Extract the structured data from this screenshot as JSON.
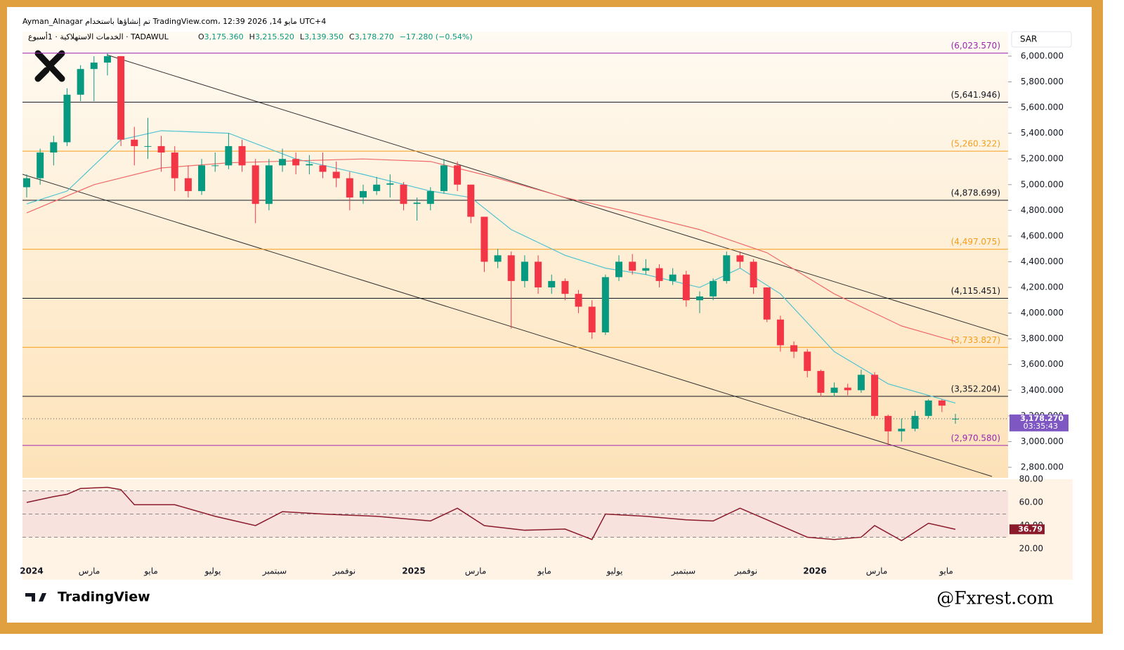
{
  "chart_data": {
    "type": "candlestick",
    "header": "Ayman_Alnagar تم إنشاؤها باستخدام TradingView.com، 12:39 2026 ,14 مايو UTC+4",
    "symbol": "الخدمات الاستهلاكية · 1أسبوع · TADAWUL",
    "ohlc": {
      "labels": [
        "O",
        "H",
        "L",
        "C"
      ],
      "values": [
        3175.36,
        3215.52,
        3139.35,
        3178.27
      ],
      "value_labels": [
        "3,175.360",
        "3,215.520",
        "3,139.350",
        "3,178.270"
      ]
    },
    "change": "−17.280 (−0.54%)",
    "currency": "SAR",
    "last_price": {
      "value": 3178.27,
      "label": "3,178.270"
    },
    "countdown": "03:35:43",
    "up_color": "#089981",
    "down_color": "#f23645",
    "ylim": [
      2718,
      6191
    ],
    "yticks": [
      {
        "value": 6000,
        "label": "6,000.000"
      },
      {
        "value": 5800,
        "label": "5,800.000"
      },
      {
        "value": 5600,
        "label": "5,600.000"
      },
      {
        "value": 5400,
        "label": "5,400.000"
      },
      {
        "value": 5200,
        "label": "5,200.000"
      },
      {
        "value": 5000,
        "label": "5,000.000"
      },
      {
        "value": 4800,
        "label": "4,800.000"
      },
      {
        "value": 4600,
        "label": "4,600.000"
      },
      {
        "value": 4400,
        "label": "4,400.000"
      },
      {
        "value": 4200,
        "label": "4,200.000"
      },
      {
        "value": 4000,
        "label": "4,000.000"
      },
      {
        "value": 3800,
        "label": "3,800.000"
      },
      {
        "value": 3600,
        "label": "3,600.000"
      },
      {
        "value": 3400,
        "label": "3,400.000"
      },
      {
        "value": 3200,
        "label": "3,200.000"
      },
      {
        "value": 3000,
        "label": "3,000.000"
      },
      {
        "value": 2800,
        "label": "2,800.000"
      }
    ],
    "levels": [
      {
        "value": 6023.57,
        "label": "(6,023.570)",
        "color": "#9c27b0"
      },
      {
        "value": 5641.946,
        "label": "(5,641.946)",
        "color": "#131722"
      },
      {
        "value": 5260.322,
        "label": "(5,260.322)",
        "color": "#f59d1b"
      },
      {
        "value": 4878.699,
        "label": "(4,878.699)",
        "color": "#131722"
      },
      {
        "value": 4497.075,
        "label": "(4,497.075)",
        "color": "#f59d1b"
      },
      {
        "value": 4115.451,
        "label": "(4,115.451)",
        "color": "#131722"
      },
      {
        "value": 3733.827,
        "label": "(3,733.827)",
        "color": "#f59d1b"
      },
      {
        "value": 3352.204,
        "label": "(3,352.204)",
        "color": "#131722"
      },
      {
        "value": 2970.58,
        "label": "(2,970.580)",
        "color": "#9c27b0"
      }
    ],
    "candles": [
      [
        4980,
        5080,
        4900,
        5050
      ],
      [
        5050,
        5280,
        5000,
        5250
      ],
      [
        5250,
        5380,
        5150,
        5330
      ],
      [
        5330,
        5750,
        5300,
        5700
      ],
      [
        5700,
        5930,
        5650,
        5900
      ],
      [
        5900,
        6000,
        5650,
        5950
      ],
      [
        5950,
        6023,
        5850,
        6000
      ],
      [
        6000,
        6000,
        5300,
        5350
      ],
      [
        5350,
        5450,
        5150,
        5300
      ],
      [
        5300,
        5520,
        5200,
        5300
      ],
      [
        5300,
        5380,
        5100,
        5250
      ],
      [
        5250,
        5300,
        4950,
        5050
      ],
      [
        5050,
        5150,
        4900,
        4950
      ],
      [
        4950,
        5200,
        4920,
        5150
      ],
      [
        5150,
        5250,
        5100,
        5150
      ],
      [
        5150,
        5400,
        5120,
        5300
      ],
      [
        5300,
        5350,
        5100,
        5150
      ],
      [
        5150,
        5200,
        4700,
        4850
      ],
      [
        4850,
        5200,
        4800,
        5150
      ],
      [
        5150,
        5280,
        5100,
        5200
      ],
      [
        5200,
        5250,
        5080,
        5150
      ],
      [
        5150,
        5230,
        5080,
        5160
      ],
      [
        5150,
        5250,
        5050,
        5100
      ],
      [
        5100,
        5180,
        4980,
        5050
      ],
      [
        5050,
        5100,
        4800,
        4900
      ],
      [
        4900,
        5000,
        4850,
        4950
      ],
      [
        4950,
        5060,
        4920,
        5000
      ],
      [
        5000,
        5080,
        4900,
        5010
      ],
      [
        5000,
        5020,
        4800,
        4850
      ],
      [
        4850,
        4900,
        4720,
        4860
      ],
      [
        4850,
        4980,
        4800,
        4950
      ],
      [
        4950,
        5200,
        4930,
        5150
      ],
      [
        5150,
        5180,
        4950,
        5000
      ],
      [
        5000,
        5000,
        4700,
        4750
      ],
      [
        4750,
        4750,
        4320,
        4400
      ],
      [
        4400,
        4500,
        4350,
        4450
      ],
      [
        4450,
        4480,
        3880,
        4250
      ],
      [
        4250,
        4450,
        4200,
        4400
      ],
      [
        4400,
        4450,
        4150,
        4200
      ],
      [
        4200,
        4300,
        4150,
        4250
      ],
      [
        4250,
        4270,
        4100,
        4150
      ],
      [
        4150,
        4180,
        4000,
        4050
      ],
      [
        4050,
        4100,
        3800,
        3850
      ],
      [
        3850,
        4300,
        3830,
        4280
      ],
      [
        4280,
        4450,
        4250,
        4400
      ],
      [
        4400,
        4460,
        4300,
        4330
      ],
      [
        4330,
        4420,
        4300,
        4350
      ],
      [
        4350,
        4380,
        4200,
        4250
      ],
      [
        4250,
        4350,
        4220,
        4300
      ],
      [
        4300,
        4330,
        4050,
        4100
      ],
      [
        4100,
        4170,
        4000,
        4130
      ],
      [
        4130,
        4270,
        4100,
        4250
      ],
      [
        4250,
        4480,
        4230,
        4450
      ],
      [
        4450,
        4480,
        4350,
        4400
      ],
      [
        4400,
        4420,
        4150,
        4200
      ],
      [
        4200,
        4200,
        3930,
        3950
      ],
      [
        3950,
        3980,
        3700,
        3750
      ],
      [
        3750,
        3780,
        3650,
        3700
      ],
      [
        3700,
        3720,
        3500,
        3550
      ],
      [
        3550,
        3560,
        3350,
        3380
      ],
      [
        3380,
        3460,
        3350,
        3420
      ],
      [
        3420,
        3450,
        3360,
        3400
      ],
      [
        3400,
        3560,
        3380,
        3520
      ],
      [
        3520,
        3540,
        3180,
        3200
      ],
      [
        3200,
        3210,
        2970,
        3080
      ],
      [
        3080,
        3180,
        3000,
        3100
      ],
      [
        3100,
        3240,
        3080,
        3200
      ],
      [
        3200,
        3330,
        3180,
        3320
      ],
      [
        3320,
        3330,
        3230,
        3280
      ],
      [
        3175.36,
        3215.52,
        3139.35,
        3178.27
      ]
    ],
    "series": [
      {
        "color": "#4fc3d0",
        "x": [
          0,
          3,
          7,
          10,
          15,
          20,
          25,
          30,
          33,
          36,
          40,
          43,
          46,
          50,
          53,
          56,
          60,
          64,
          69
        ],
        "values": [
          4850,
          4950,
          5350,
          5420,
          5400,
          5200,
          5080,
          4950,
          4900,
          4650,
          4450,
          4350,
          4300,
          4200,
          4350,
          4150,
          3700,
          3450,
          3300
        ]
      },
      {
        "color": "#ef6a6a",
        "x": [
          0,
          5,
          10,
          15,
          25,
          30,
          35,
          40,
          45,
          50,
          55,
          60,
          65,
          69
        ],
        "values": [
          4780,
          5000,
          5130,
          5170,
          5200,
          5180,
          5050,
          4900,
          4780,
          4650,
          4470,
          4150,
          3900,
          3780
        ]
      }
    ],
    "x_labels": [
      "2024",
      "مارس",
      "مايو",
      "يوليو",
      "سبتمبر",
      "نوفمبر",
      "2025",
      "مارس",
      "مايو",
      "يوليو",
      "سبتمبر",
      "نوفمبر",
      "2026",
      "مارس",
      "مايو"
    ],
    "rsi": {
      "color": "#8b1a2b",
      "ylim": [
        -6.7,
        81.2
      ],
      "yticks": [
        {
          "value": 80,
          "label": "80.00"
        },
        {
          "value": 60,
          "label": "60.00"
        },
        {
          "value": 40,
          "label": "40.00"
        },
        {
          "value": 20,
          "label": "20.00"
        }
      ],
      "bands": [
        70,
        50,
        30
      ],
      "x": [
        0,
        2,
        3,
        4,
        6,
        7,
        8,
        11,
        14,
        17,
        19,
        22,
        26,
        30,
        32,
        34,
        37,
        40,
        42,
        43,
        46,
        49,
        51,
        53,
        54,
        56,
        58,
        60,
        62,
        63,
        65,
        67,
        69
      ],
      "values": [
        60,
        65,
        67,
        72,
        73,
        71,
        58,
        58,
        48,
        40,
        52,
        50,
        48,
        44,
        55,
        40,
        36,
        37,
        28,
        50,
        48,
        45,
        44,
        55,
        50,
        40,
        30,
        28,
        30,
        40,
        27,
        42,
        36.79
      ],
      "last": 36.79
    },
    "footer_brand": "TradingView",
    "watermark": "@Fxrest.com"
  }
}
